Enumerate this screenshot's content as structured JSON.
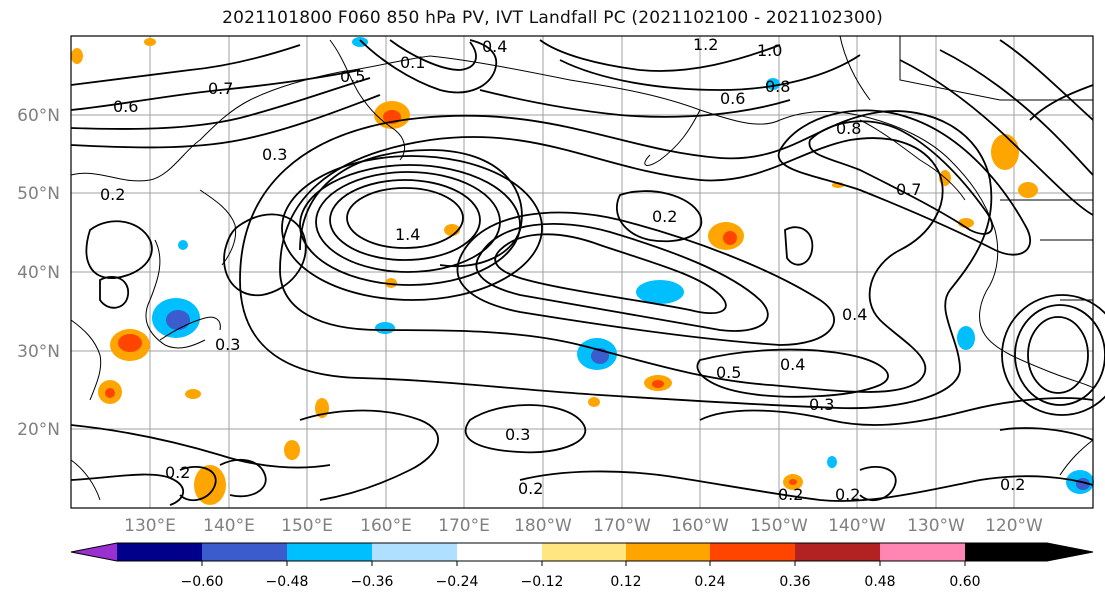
{
  "title": "2021101800 F060 850 hPa PV, IVT Landfall PC (2021102100 - 2021102300)",
  "lat_labels": [
    "60°N",
    "50°N",
    "40°N",
    "30°N",
    "20°N"
  ],
  "lon_labels": [
    "130°E",
    "140°E",
    "150°E",
    "160°E",
    "170°E",
    "180°W",
    "170°W",
    "160°W",
    "150°W",
    "140°W",
    "130°W",
    "120°W"
  ],
  "contour_labels": [
    "0.4",
    "1.2",
    "1.0",
    "0.8",
    "0.5",
    "0.6",
    "0.7",
    "0.3",
    "0.2",
    "0.1",
    "1.4",
    "0.2",
    "0.4",
    "0.5",
    "0.3",
    "0.2",
    "0.8",
    "0.7",
    "0.6",
    "0.3",
    "0.4",
    "0.2",
    "0.2",
    "0.3",
    "0.2",
    "0.2"
  ],
  "colorbar": {
    "ticks": [
      "−0.60",
      "−0.48",
      "−0.36",
      "−0.24",
      "−0.12",
      "0.12",
      "0.24",
      "0.36",
      "0.48",
      "0.60"
    ],
    "colors": [
      "#9b30d0",
      "#00008b",
      "#3a5ccc",
      "#00bfff",
      "#b0e0ff",
      "#ffffff",
      "#ffe680",
      "#ffa500",
      "#ff4500",
      "#b22222",
      "#ff85b3"
    ]
  },
  "map_colors": {
    "ocean_bg": "#ffffff",
    "grid": "#a0a0a0",
    "contour": "#000000"
  }
}
